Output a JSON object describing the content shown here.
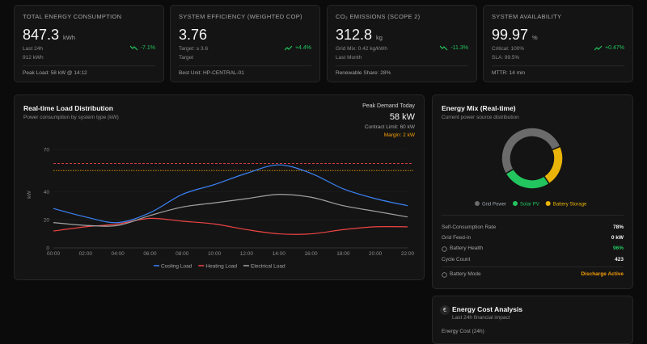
{
  "kpis": [
    {
      "label": "TOTAL ENERGY CONSUMPTION",
      "value": 847.3,
      "unit": "kWh",
      "change": "-7.1%",
      "detail": "Last 24h",
      "detail2": "912 kWh",
      "footer": "Peak Load: 58 kW @ 14:12"
    },
    {
      "label": "SYSTEM EFFICIENCY (WEIGHTED COP)",
      "value": 3.76,
      "change": "+4.4%",
      "detail": "Target: ≥ 3.6",
      "detail2": "Target",
      "footer": "Best Unit: HP-CENTRAL-01"
    },
    {
      "label": "CO₂ EMISSIONS (SCOPE 2)",
      "value": 312.8,
      "unit": "kg",
      "change": "-11.3%",
      "detail": "Grid Mix: 0.42 kg/kWh",
      "detail2": "Last Month",
      "footer": "Renewable Share: 28%"
    },
    {
      "label": "SYSTEM AVAILABILITY",
      "value": 99.97,
      "unit": "%",
      "change": "+0.47%",
      "detail": "Critical: 100%",
      "detail2": "SLA: 99.5%",
      "footer": "MTTR: 14 min"
    }
  ],
  "load_summary": {
    "label": "Peak Demand Today",
    "value": "58 kW",
    "contract": "Contract Limit: 60 kW",
    "margin": "Margin: 2 kW"
  },
  "chart_data": [
    {
      "type": "line",
      "title": "Real-time Load Distribution",
      "subtitle": "Power consumption by system type (kW)",
      "y_label": "kW",
      "categories": [
        "00:00",
        "02:00",
        "04:00",
        "06:00",
        "08:00",
        "10:00",
        "12:00",
        "14:00",
        "16:00",
        "18:00",
        "20:00",
        "22:00"
      ],
      "ylim": [
        0,
        70
      ],
      "yticks": [
        0,
        20,
        40,
        70
      ],
      "grid": true,
      "series": [
        {
          "name": "Cooling Load",
          "color": "#3b82f6",
          "values": [
            28,
            22,
            18,
            25,
            38,
            45,
            53,
            59,
            53,
            42,
            35,
            30
          ]
        },
        {
          "name": "Heating Load",
          "color": "#ef4444",
          "values": [
            12,
            15,
            17,
            21,
            19,
            17,
            13,
            10,
            10,
            13,
            15,
            15
          ]
        },
        {
          "name": "Electrical Load",
          "color": "#a3a3a3",
          "values": [
            18,
            16,
            16,
            23,
            29,
            32,
            35,
            38,
            36,
            30,
            26,
            22
          ]
        }
      ],
      "reference_lines": [
        {
          "value": 60,
          "color": "#ef4444"
        },
        {
          "value": 55,
          "color": "#f59e0b"
        }
      ]
    },
    {
      "type": "pie",
      "donut": true,
      "title": "Energy Mix (Real-time)",
      "subtitle": "Current power source distribution",
      "categories": [
        "Grid Power",
        "Solar PV",
        "Battery Storage"
      ],
      "values": [
        52,
        26,
        22
      ],
      "colors": [
        "#6b6b6b",
        "#22c55e",
        "#eab308"
      ]
    }
  ],
  "energy_mix_stats": [
    {
      "label": "Self-Consumption Rate",
      "value": "78%"
    },
    {
      "label": "Grid Feed-in",
      "value": "0 kW"
    },
    {
      "label": "Battery Health",
      "value": "96%",
      "color": "#22c55e"
    },
    {
      "label": "Cycle Count",
      "value": "423"
    },
    {
      "label": "Battery Mode",
      "value": "Discharge Active",
      "color": "#f59e0b"
    }
  ],
  "cost_card": {
    "icon": "€",
    "title": "Energy Cost Analysis",
    "subtitle": "Last 24h financial impact",
    "row_label": "Energy Cost (24h)"
  }
}
